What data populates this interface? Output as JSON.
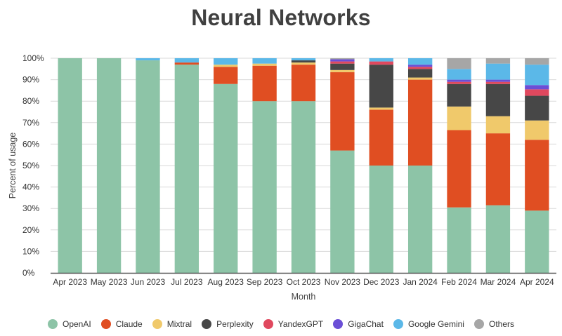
{
  "title": "Neural Networks",
  "chart_data": {
    "type": "bar",
    "stacked": true,
    "title": "Neural Networks",
    "xlabel": "Month",
    "ylabel": "Percent of usage",
    "ylim": [
      0,
      100
    ],
    "y_ticks": [
      "0%",
      "10%",
      "20%",
      "30%",
      "40%",
      "50%",
      "60%",
      "70%",
      "80%",
      "90%",
      "100%"
    ],
    "grid": true,
    "legend_position": "bottom",
    "categories": [
      "Apr 2023",
      "May 2023",
      "Jun 2023",
      "Jul 2023",
      "Aug 2023",
      "Sep 2023",
      "Oct 2023",
      "Nov 2023",
      "Dec 2023",
      "Jan 2024",
      "Feb 2024",
      "Mar 2024",
      "Apr 2024"
    ],
    "series": [
      {
        "name": "OpenAI",
        "color": "#8dc4a7",
        "values": [
          100,
          100,
          99,
          97,
          88,
          80,
          80,
          57,
          50,
          50,
          30.5,
          31.5,
          29
        ]
      },
      {
        "name": "Claude",
        "color": "#e04e22",
        "values": [
          0,
          0,
          0,
          1,
          8,
          16.5,
          17,
          36.5,
          26,
          40,
          36,
          33.5,
          33
        ]
      },
      {
        "name": "Mixtral",
        "color": "#f0c96b",
        "values": [
          0,
          0,
          0,
          0,
          1,
          1,
          1,
          1,
          1,
          1,
          11,
          8,
          9
        ]
      },
      {
        "name": "Perplexity",
        "color": "#474747",
        "values": [
          0,
          0,
          0,
          0,
          0,
          0,
          1,
          3,
          20,
          4,
          10.5,
          15,
          11.5
        ]
      },
      {
        "name": "YandexGPT",
        "color": "#e0485e",
        "values": [
          0,
          0,
          0,
          0,
          0,
          0,
          0,
          1,
          1.5,
          1,
          1,
          1,
          3
        ]
      },
      {
        "name": "GigaChat",
        "color": "#6b4fd6",
        "values": [
          0,
          0,
          0,
          0,
          0,
          0,
          0,
          1,
          0,
          1,
          1,
          1,
          2
        ]
      },
      {
        "name": "Google Gemini",
        "color": "#5bb8e8",
        "values": [
          0,
          0,
          1,
          2,
          3,
          2.5,
          1,
          0,
          1.5,
          3,
          5,
          7.5,
          9.5
        ]
      },
      {
        "name": "Others",
        "color": "#a6a6a6",
        "values": [
          0,
          0,
          0,
          0,
          0,
          0,
          0,
          0.5,
          0,
          0,
          5,
          2.5,
          3
        ]
      }
    ]
  }
}
